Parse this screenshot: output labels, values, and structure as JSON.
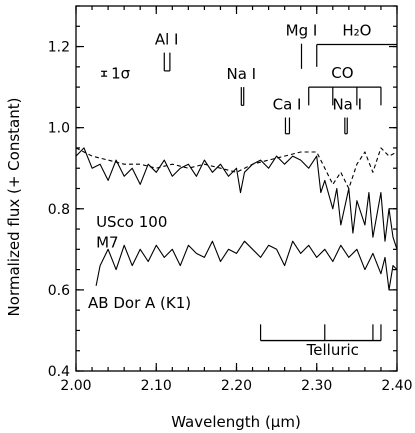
{
  "chart_data": {
    "type": "line",
    "title": "",
    "xlabel": "Wavelength (μm)",
    "ylabel": "Normalized flux (+ Constant)",
    "xlim": [
      2.0,
      2.4
    ],
    "ylim": [
      0.4,
      1.3
    ],
    "xticks": [
      2.0,
      2.1,
      2.2,
      2.3,
      2.4
    ],
    "xtick_labels": [
      "2.00",
      "2.10",
      "2.20",
      "2.30",
      "2.40"
    ],
    "yticks": [
      0.4,
      0.6,
      0.8,
      1.0,
      1.2
    ],
    "ytick_labels": [
      "0.4",
      "0.6",
      "0.8",
      "1.0",
      "1.2"
    ],
    "grid": false,
    "series": [
      {
        "style": "solid",
        "x": [
          2.0,
          2.01,
          2.02,
          2.03,
          2.04,
          2.05,
          2.06,
          2.07,
          2.08,
          2.09,
          2.1,
          2.11,
          2.12,
          2.13,
          2.14,
          2.15,
          2.16,
          2.17,
          2.18,
          2.19,
          2.2,
          2.205,
          2.21,
          2.22,
          2.23,
          2.24,
          2.25,
          2.26,
          2.27,
          2.28,
          2.29,
          2.3,
          2.305,
          2.31,
          2.32,
          2.325,
          2.33,
          2.34,
          2.345,
          2.35,
          2.36,
          2.365,
          2.37,
          2.38,
          2.385,
          2.39,
          2.395,
          2.4
        ],
        "values": [
          0.93,
          0.95,
          0.9,
          0.91,
          0.87,
          0.92,
          0.88,
          0.9,
          0.86,
          0.91,
          0.89,
          0.92,
          0.88,
          0.9,
          0.91,
          0.88,
          0.92,
          0.89,
          0.91,
          0.88,
          0.9,
          0.84,
          0.89,
          0.91,
          0.92,
          0.9,
          0.93,
          0.91,
          0.93,
          0.92,
          0.9,
          0.93,
          0.84,
          0.87,
          0.8,
          0.85,
          0.76,
          0.85,
          0.74,
          0.82,
          0.76,
          0.84,
          0.73,
          0.84,
          0.72,
          0.8,
          0.73,
          0.7
        ]
      },
      {
        "style": "dashed",
        "x": [
          2.0,
          2.02,
          2.04,
          2.06,
          2.08,
          2.1,
          2.12,
          2.14,
          2.16,
          2.18,
          2.2,
          2.22,
          2.24,
          2.26,
          2.28,
          2.3,
          2.31,
          2.32,
          2.33,
          2.34,
          2.35,
          2.36,
          2.37,
          2.38,
          2.39,
          2.4
        ],
        "values": [
          0.95,
          0.93,
          0.92,
          0.91,
          0.91,
          0.9,
          0.91,
          0.9,
          0.91,
          0.9,
          0.89,
          0.91,
          0.92,
          0.93,
          0.94,
          0.94,
          0.9,
          0.86,
          0.89,
          0.85,
          0.91,
          0.94,
          0.89,
          0.95,
          0.93,
          0.94
        ]
      },
      {
        "style": "solid",
        "x": [
          2.025,
          2.03,
          2.04,
          2.05,
          2.06,
          2.07,
          2.08,
          2.09,
          2.1,
          2.11,
          2.12,
          2.13,
          2.14,
          2.15,
          2.16,
          2.17,
          2.18,
          2.19,
          2.2,
          2.21,
          2.22,
          2.23,
          2.24,
          2.25,
          2.26,
          2.27,
          2.28,
          2.29,
          2.3,
          2.31,
          2.32,
          2.33,
          2.34,
          2.35,
          2.36,
          2.37,
          2.38,
          2.385,
          2.39,
          2.395,
          2.4
        ],
        "values": [
          0.61,
          0.66,
          0.7,
          0.65,
          0.71,
          0.66,
          0.7,
          0.67,
          0.71,
          0.68,
          0.7,
          0.66,
          0.71,
          0.69,
          0.68,
          0.72,
          0.67,
          0.7,
          0.69,
          0.72,
          0.7,
          0.68,
          0.71,
          0.7,
          0.66,
          0.72,
          0.69,
          0.71,
          0.68,
          0.7,
          0.67,
          0.71,
          0.68,
          0.7,
          0.65,
          0.69,
          0.64,
          0.68,
          0.6,
          0.66,
          0.65
        ]
      }
    ],
    "object_labels": [
      {
        "text": "USco 100",
        "x": 2.025,
        "y": 0.755
      },
      {
        "text": "M7",
        "x": 2.025,
        "y": 0.705
      },
      {
        "text": "AB Dor A (K1)",
        "x": 2.015,
        "y": 0.555
      }
    ],
    "error_bar": {
      "label": "1σ",
      "x": 2.035,
      "y": 1.133,
      "half_height": 0.006
    },
    "features": [
      {
        "label": "Al I",
        "label_x": 2.113,
        "label_y": 1.205,
        "marks": [
          2.11,
          2.117
        ],
        "mark_top": 1.185,
        "mark_bottom": 1.14
      },
      {
        "label": "Mg I",
        "label_x": 2.281,
        "label_y": 1.227,
        "marks": [
          2.281
        ],
        "mark_top": 1.207,
        "mark_bottom": 1.145
      },
      {
        "label": "Na I",
        "label_x": 2.206,
        "label_y": 1.12,
        "marks": [
          2.206,
          2.209
        ],
        "mark_top": 1.1,
        "mark_bottom": 1.055
      },
      {
        "label": "Ca I",
        "label_x": 2.263,
        "label_y": 1.045,
        "marks": [
          2.261,
          2.266
        ],
        "mark_top": 1.025,
        "mark_bottom": 0.985
      },
      {
        "label": "Na I",
        "label_x": 2.338,
        "label_y": 1.045,
        "marks": [
          2.335,
          2.338
        ],
        "mark_top": 1.025,
        "mark_bottom": 0.985
      }
    ],
    "bands": [
      {
        "label": "H₂O",
        "label_x": 2.35,
        "label_y": 1.227,
        "start": 2.3,
        "end": 2.4,
        "y": 1.205,
        "ticks": [
          2.3
        ],
        "tick_dir": "down",
        "tick_len": 0.055
      },
      {
        "label": "CO",
        "label_x": 2.332,
        "label_y": 1.123,
        "start": 2.29,
        "end": 2.38,
        "y": 1.1,
        "ticks": [
          2.29,
          2.32,
          2.35,
          2.38
        ],
        "tick_dir": "down",
        "tick_len": 0.045
      },
      {
        "label": "Telluric",
        "label_x": 2.32,
        "label_y": 0.44,
        "start": 2.23,
        "end": 2.38,
        "y": 0.475,
        "ticks": [
          2.23,
          2.31,
          2.37,
          2.38
        ],
        "tick_dir": "up",
        "tick_len": 0.04
      }
    ]
  }
}
